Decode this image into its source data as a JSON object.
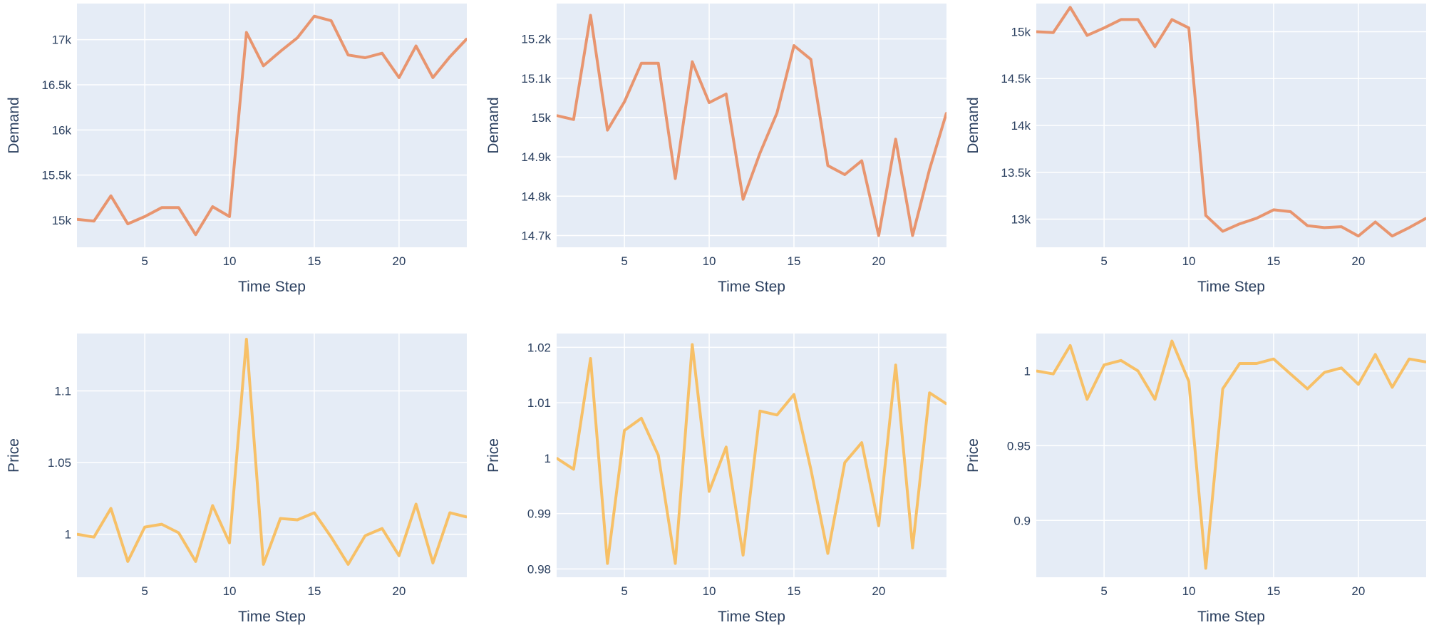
{
  "chart_data": [
    {
      "type": "line",
      "xlabel": "Time Step",
      "ylabel": "Demand",
      "xlim": [
        1,
        24
      ],
      "ylim": [
        14700,
        17400
      ],
      "xticks": [
        5,
        10,
        15,
        20
      ],
      "yticks": [
        15000,
        15500,
        16000,
        16500,
        17000
      ],
      "ytick_labels": [
        "15k",
        "15.5k",
        "16k",
        "16.5k",
        "17k"
      ],
      "color": "#e8956f",
      "series": [
        {
          "x": [
            1,
            2,
            3,
            4,
            5,
            6,
            7,
            8,
            9,
            10,
            11,
            12,
            13,
            14,
            15,
            16,
            17,
            18,
            19,
            20,
            21,
            22,
            23,
            24
          ],
          "values": [
            15010,
            14990,
            15270,
            14960,
            15040,
            15140,
            15140,
            14840,
            15150,
            15040,
            17080,
            16710,
            16870,
            17020,
            17260,
            17210,
            16830,
            16800,
            16850,
            16580,
            16930,
            16580,
            16810,
            17010
          ]
        }
      ]
    },
    {
      "type": "line",
      "xlabel": "Time Step",
      "ylabel": "Demand",
      "xlim": [
        1,
        24
      ],
      "ylim": [
        14670,
        15290
      ],
      "xticks": [
        5,
        10,
        15,
        20
      ],
      "yticks": [
        14700,
        14800,
        14900,
        15000,
        15100,
        15200
      ],
      "ytick_labels": [
        "14.7k",
        "14.8k",
        "14.9k",
        "15k",
        "15.1k",
        "15.2k"
      ],
      "color": "#e8956f",
      "series": [
        {
          "x": [
            1,
            2,
            3,
            4,
            5,
            6,
            7,
            8,
            9,
            10,
            11,
            12,
            13,
            14,
            15,
            16,
            17,
            18,
            19,
            20,
            21,
            22,
            23,
            24
          ],
          "values": [
            15005,
            14995,
            15260,
            14968,
            15040,
            15138,
            15138,
            14845,
            15142,
            15038,
            15060,
            14792,
            14910,
            15012,
            15183,
            15148,
            14878,
            14855,
            14890,
            14700,
            14945,
            14700,
            14868,
            15012
          ]
        }
      ]
    },
    {
      "type": "line",
      "xlabel": "Time Step",
      "ylabel": "Demand",
      "xlim": [
        1,
        24
      ],
      "ylim": [
        12700,
        15300
      ],
      "xticks": [
        5,
        10,
        15,
        20
      ],
      "yticks": [
        13000,
        13500,
        14000,
        14500,
        15000
      ],
      "ytick_labels": [
        "13k",
        "13.5k",
        "14k",
        "14.5k",
        "15k"
      ],
      "color": "#e8956f",
      "series": [
        {
          "x": [
            1,
            2,
            3,
            4,
            5,
            6,
            7,
            8,
            9,
            10,
            11,
            12,
            13,
            14,
            15,
            16,
            17,
            18,
            19,
            20,
            21,
            22,
            23,
            24
          ],
          "values": [
            15000,
            14990,
            15260,
            14960,
            15040,
            15130,
            15130,
            14840,
            15130,
            15040,
            13040,
            12870,
            12950,
            13010,
            13100,
            13080,
            12930,
            12910,
            12920,
            12820,
            12970,
            12820,
            12910,
            13010
          ]
        }
      ]
    },
    {
      "type": "line",
      "xlabel": "Time Step",
      "ylabel": "Price",
      "xlim": [
        1,
        24
      ],
      "ylim": [
        0.97,
        1.14
      ],
      "xticks": [
        5,
        10,
        15,
        20
      ],
      "yticks": [
        1.0,
        1.05,
        1.1
      ],
      "ytick_labels": [
        "1",
        "1.05",
        "1.1"
      ],
      "color": "#f7c067",
      "series": [
        {
          "x": [
            1,
            2,
            3,
            4,
            5,
            6,
            7,
            8,
            9,
            10,
            11,
            12,
            13,
            14,
            15,
            16,
            17,
            18,
            19,
            20,
            21,
            22,
            23,
            24
          ],
          "values": [
            1.0,
            0.998,
            1.018,
            0.981,
            1.005,
            1.007,
            1.001,
            0.981,
            1.02,
            0.994,
            1.136,
            0.979,
            1.011,
            1.01,
            1.015,
            0.998,
            0.979,
            0.999,
            1.004,
            0.985,
            1.021,
            0.98,
            1.015,
            1.012
          ]
        }
      ]
    },
    {
      "type": "line",
      "xlabel": "Time Step",
      "ylabel": "Price",
      "xlim": [
        1,
        24
      ],
      "ylim": [
        0.9785,
        1.0225
      ],
      "xticks": [
        5,
        10,
        15,
        20
      ],
      "yticks": [
        0.98,
        0.99,
        1.0,
        1.01,
        1.02
      ],
      "ytick_labels": [
        "0.98",
        "0.99",
        "1",
        "1.01",
        "1.02"
      ],
      "color": "#f7c067",
      "series": [
        {
          "x": [
            1,
            2,
            3,
            4,
            5,
            6,
            7,
            8,
            9,
            10,
            11,
            12,
            13,
            14,
            15,
            16,
            17,
            18,
            19,
            20,
            21,
            22,
            23,
            24
          ],
          "values": [
            1.0,
            0.998,
            1.018,
            0.981,
            1.005,
            1.0072,
            1.0005,
            0.981,
            1.0205,
            0.994,
            1.002,
            0.9825,
            1.0085,
            1.0078,
            1.0115,
            0.998,
            0.9828,
            0.9992,
            1.0028,
            0.9878,
            1.0168,
            0.9838,
            1.0118,
            1.0098
          ]
        }
      ]
    },
    {
      "type": "line",
      "xlabel": "Time Step",
      "ylabel": "Price",
      "xlim": [
        1,
        24
      ],
      "ylim": [
        0.862,
        1.025
      ],
      "xticks": [
        5,
        10,
        15,
        20
      ],
      "yticks": [
        0.9,
        0.95,
        1.0
      ],
      "ytick_labels": [
        "0.9",
        "0.95",
        "1"
      ],
      "color": "#f7c067",
      "series": [
        {
          "x": [
            1,
            2,
            3,
            4,
            5,
            6,
            7,
            8,
            9,
            10,
            11,
            12,
            13,
            14,
            15,
            16,
            17,
            18,
            19,
            20,
            21,
            22,
            23,
            24
          ],
          "values": [
            1.0,
            0.998,
            1.017,
            0.981,
            1.004,
            1.007,
            1.0,
            0.981,
            1.02,
            0.993,
            0.868,
            0.988,
            1.005,
            1.005,
            1.008,
            0.998,
            0.988,
            0.999,
            1.002,
            0.991,
            1.011,
            0.989,
            1.008,
            1.006
          ]
        }
      ]
    }
  ]
}
